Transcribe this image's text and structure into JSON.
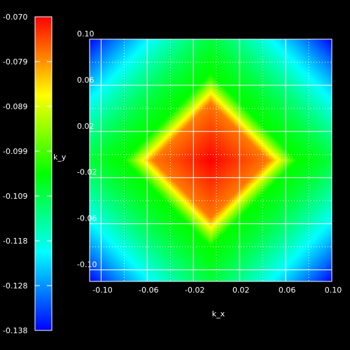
{
  "chart_data": {
    "type": "heatmap",
    "xlabel": "k_x",
    "ylabel": "k_y",
    "xlim": [
      -0.11,
      0.1
    ],
    "ylim": [
      -0.11,
      0.1
    ],
    "x_ticks": [
      -0.1,
      -0.06,
      -0.02,
      0.02,
      0.06,
      0.1
    ],
    "x_tick_labels": [
      "-0.10",
      "-0.06",
      "-0.02",
      "0.02",
      "0.06",
      "0.10"
    ],
    "y_ticks": [
      0.1,
      0.06,
      0.02,
      -0.02,
      -0.06,
      -0.1
    ],
    "y_tick_labels": [
      "0.10",
      "0.06",
      "0.02",
      "-0.02",
      "-0.06",
      "-0.10"
    ],
    "grid": true,
    "colorbar": {
      "min": -0.138,
      "max": -0.07,
      "tick_labels": [
        "-0.070",
        "-0.079",
        "-0.089",
        "-0.099",
        "-0.109",
        "-0.118",
        "-0.128",
        "-0.138"
      ],
      "colormap": [
        "#0000ff",
        "#00ffff",
        "#00ff00",
        "#ffff00",
        "#ff0000"
      ]
    },
    "surface": {
      "center_x": -0.005,
      "center_y": -0.005,
      "max_value": -0.07,
      "min_value": -0.138,
      "description_of_shape": "diamond"
    }
  }
}
